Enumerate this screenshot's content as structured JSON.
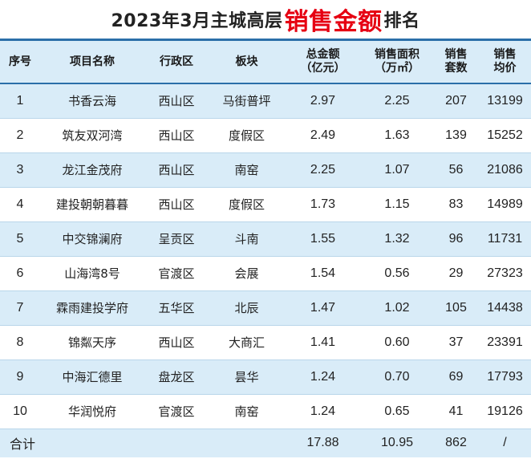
{
  "title": {
    "prefix": "2023年3月主城高层",
    "highlight": "销售金额",
    "suffix": "排名"
  },
  "headers": {
    "rank": "序号",
    "name": "项目名称",
    "district": "行政区",
    "sector": "板块",
    "amount_line1": "总金额",
    "amount_line2": "（亿元）",
    "area_line1": "销售面积",
    "area_line2": "（万㎡）",
    "units_line1": "销售",
    "units_line2": "套数",
    "avg_line1": "销售",
    "avg_line2": "均价"
  },
  "rows": [
    {
      "rank": "1",
      "name": "书香云海",
      "district": "西山区",
      "sector": "马街普坪",
      "amount": "2.97",
      "area": "2.25",
      "units": "207",
      "avg": "13199"
    },
    {
      "rank": "2",
      "name": "筑友双河湾",
      "district": "西山区",
      "sector": "度假区",
      "amount": "2.49",
      "area": "1.63",
      "units": "139",
      "avg": "15252"
    },
    {
      "rank": "3",
      "name": "龙江金茂府",
      "district": "西山区",
      "sector": "南窑",
      "amount": "2.25",
      "area": "1.07",
      "units": "56",
      "avg": "21086"
    },
    {
      "rank": "4",
      "name": "建投朝朝暮暮",
      "district": "西山区",
      "sector": "度假区",
      "amount": "1.73",
      "area": "1.15",
      "units": "83",
      "avg": "14989"
    },
    {
      "rank": "5",
      "name": "中交锦澜府",
      "district": "呈贡区",
      "sector": "斗南",
      "amount": "1.55",
      "area": "1.32",
      "units": "96",
      "avg": "11731"
    },
    {
      "rank": "6",
      "name": "山海湾8号",
      "district": "官渡区",
      "sector": "会展",
      "amount": "1.54",
      "area": "0.56",
      "units": "29",
      "avg": "27323"
    },
    {
      "rank": "7",
      "name": "霖雨建投学府",
      "district": "五华区",
      "sector": "北辰",
      "amount": "1.47",
      "area": "1.02",
      "units": "105",
      "avg": "14438"
    },
    {
      "rank": "8",
      "name": "锦粼天序",
      "district": "西山区",
      "sector": "大商汇",
      "amount": "1.41",
      "area": "0.60",
      "units": "37",
      "avg": "23391"
    },
    {
      "rank": "9",
      "name": "中海汇德里",
      "district": "盘龙区",
      "sector": "昙华",
      "amount": "1.24",
      "area": "0.70",
      "units": "69",
      "avg": "17793"
    },
    {
      "rank": "10",
      "name": "华润悦府",
      "district": "官渡区",
      "sector": "南窑",
      "amount": "1.24",
      "area": "0.65",
      "units": "41",
      "avg": "19126"
    }
  ],
  "total": {
    "label": "合计",
    "amount": "17.88",
    "area": "10.95",
    "units": "862",
    "avg": "/"
  },
  "colors": {
    "header_bg": "#d9ecf8",
    "highlight": "#e60012",
    "rule": "#2b6fa9"
  }
}
